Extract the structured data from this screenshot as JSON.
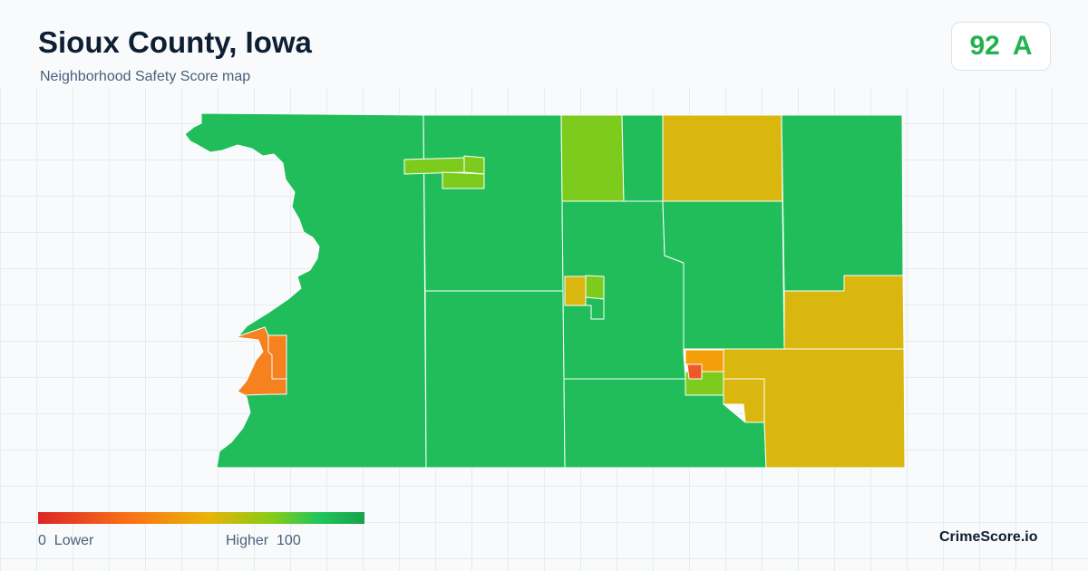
{
  "header": {
    "title": "Sioux County, Iowa",
    "subtitle": "Neighborhood Safety Score map"
  },
  "score": {
    "value": "92",
    "grade": "A",
    "color": "#22b34f"
  },
  "legend": {
    "low_value": "0",
    "low_label": "Lower",
    "high_label": "Higher",
    "high_value": "100",
    "colors": [
      "#dc2626",
      "#f97316",
      "#eab308",
      "#84cc16",
      "#22c55e",
      "#16a34a"
    ]
  },
  "brand": "CrimeScore.io",
  "map": {
    "palette": {
      "green": "#21bd5b",
      "yellow_green": "#7dcc1d",
      "yellow": "#d9b70e",
      "orange": "#f5821f",
      "red_orange": "#ef5a24"
    }
  }
}
